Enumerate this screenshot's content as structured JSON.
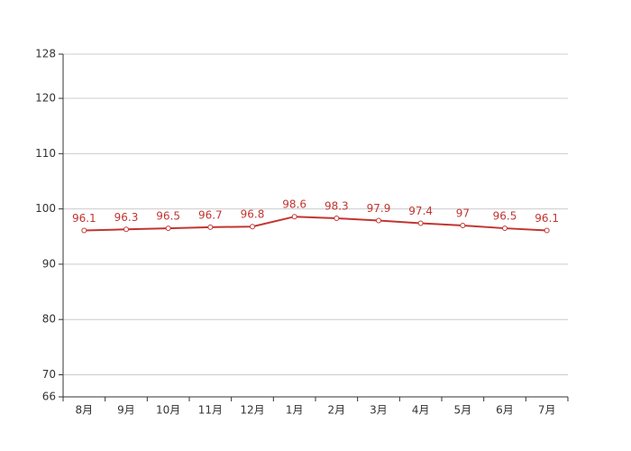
{
  "chart_data": {
    "type": "line",
    "categories": [
      "8月",
      "9月",
      "10月",
      "11月",
      "12月",
      "1月",
      "2月",
      "3月",
      "4月",
      "5月",
      "6月",
      "7月"
    ],
    "values": [
      96.1,
      96.3,
      96.5,
      96.7,
      96.8,
      98.6,
      98.3,
      97.9,
      97.4,
      97,
      96.5,
      96.1
    ],
    "color": "#c23531",
    "ylim": [
      66,
      128
    ],
    "yticks": [
      66,
      70,
      80,
      90,
      100,
      110,
      120,
      128
    ],
    "grid": true
  }
}
